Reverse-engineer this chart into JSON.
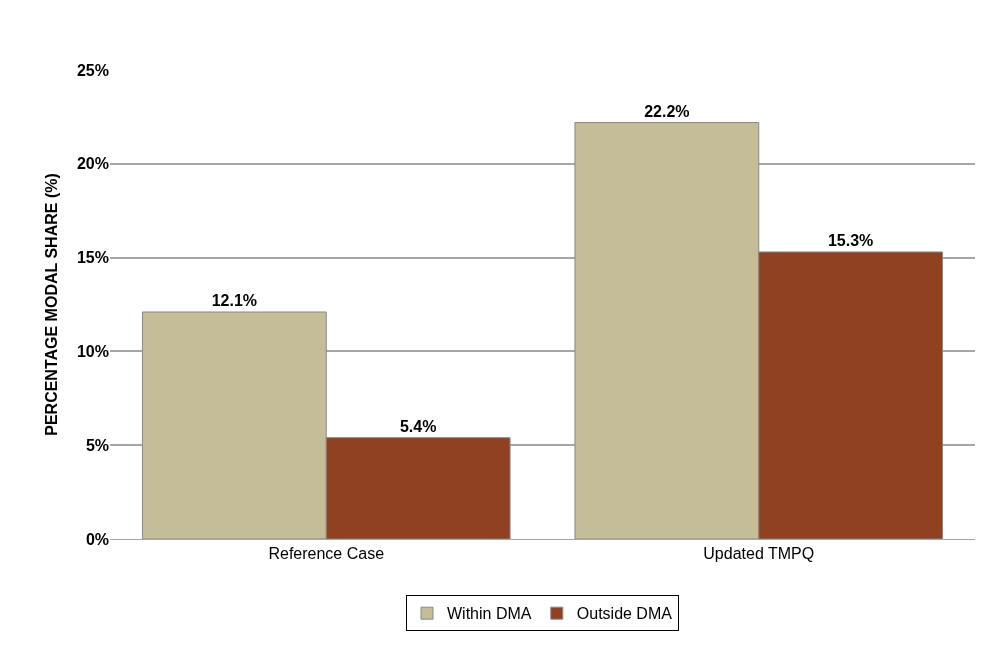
{
  "chart_data": {
    "type": "bar",
    "ylabel": "PERCENTAGE MODAL SHARE (%)",
    "categories": [
      "Reference Case",
      "Updated TMPQ"
    ],
    "series": [
      {
        "name": "Within DMA",
        "color": "#c4bd97",
        "values": [
          12.1,
          22.2
        ],
        "value_labels": [
          "12.1%",
          "22.2%"
        ]
      },
      {
        "name": "Outside DMA",
        "color": "#8f4122",
        "values": [
          5.4,
          15.3
        ],
        "value_labels": [
          "5.4%",
          "15.3%"
        ]
      }
    ],
    "ylim": [
      0,
      25
    ],
    "yticks": [
      {
        "value": 0,
        "label": "0%"
      },
      {
        "value": 5,
        "label": "5%"
      },
      {
        "value": 10,
        "label": "10%"
      },
      {
        "value": 15,
        "label": "15%"
      },
      {
        "value": 20,
        "label": "20%"
      },
      {
        "value": 25,
        "label": "25%"
      }
    ],
    "grid": "y",
    "legend": "bottom"
  }
}
